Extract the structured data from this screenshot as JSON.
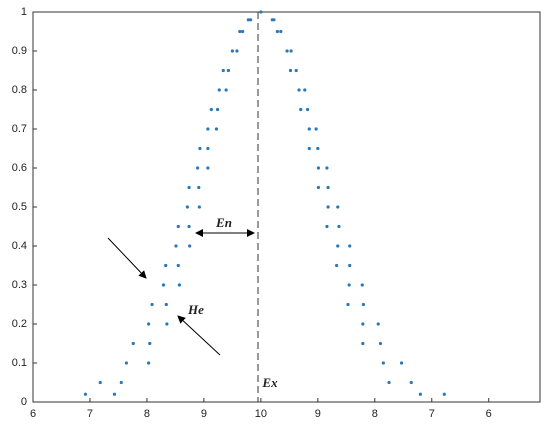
{
  "chart_data": {
    "type": "scatter",
    "color": "#2a78b8",
    "annotations": [
      "En",
      "He",
      "Ex"
    ],
    "x": [
      7.43,
      6.92,
      12.8,
      13.22,
      7.55,
      7.18,
      12.25,
      12.64,
      8.03,
      7.64,
      12.15,
      12.47,
      8.05,
      7.76,
      11.79,
      12.1,
      8.35,
      8.03,
      11.79,
      12.06,
      8.34,
      8.09,
      11.53,
      11.8,
      8.57,
      8.29,
      11.55,
      11.78,
      8.55,
      8.33,
      11.33,
      11.56,
      8.75,
      8.51,
      11.35,
      11.56,
      8.74,
      8.55,
      11.16,
      11.37,
      8.92,
      8.71,
      11.18,
      11.35,
      8.91,
      8.74,
      11.01,
      11.18,
      9.07,
      8.89,
      11.01,
      11.16,
      9.07,
      8.93,
      10.85,
      11.0,
      9.22,
      9.07,
      10.85,
      10.97,
      9.24,
      9.13,
      10.7,
      10.82,
      9.39,
      9.27,
      10.67,
      10.77,
      9.43,
      9.34,
      10.52,
      10.62,
      9.58,
      9.5,
      10.46,
      10.53,
      9.68,
      9.63,
      10.29,
      10.35,
      9.82,
      9.78,
      10.2,
      10.23,
      10
    ],
    "y": [
      0.02,
      0.02,
      0.02,
      0.02,
      0.05,
      0.05,
      0.05,
      0.05,
      0.1,
      0.1,
      0.1,
      0.1,
      0.15,
      0.15,
      0.15,
      0.15,
      0.2,
      0.2,
      0.2,
      0.2,
      0.25,
      0.25,
      0.25,
      0.25,
      0.3,
      0.3,
      0.3,
      0.3,
      0.35,
      0.35,
      0.35,
      0.35,
      0.4,
      0.4,
      0.4,
      0.4,
      0.45,
      0.45,
      0.45,
      0.45,
      0.5,
      0.5,
      0.5,
      0.5,
      0.55,
      0.55,
      0.55,
      0.55,
      0.6,
      0.6,
      0.6,
      0.6,
      0.65,
      0.65,
      0.65,
      0.65,
      0.7,
      0.7,
      0.7,
      0.7,
      0.75,
      0.75,
      0.75,
      0.75,
      0.8,
      0.8,
      0.8,
      0.8,
      0.85,
      0.85,
      0.85,
      0.85,
      0.9,
      0.9,
      0.9,
      0.9,
      0.95,
      0.95,
      0.95,
      0.95,
      0.98,
      0.98,
      0.98,
      0.98,
      1
    ],
    "xlim": [
      6,
      14.9
    ],
    "ylim": [
      0,
      1
    ],
    "xticks": [
      6,
      7,
      8,
      9,
      10,
      {
        "value": 11,
        "label": "9"
      },
      {
        "value": 12,
        "label": "8"
      },
      {
        "value": 13,
        "label": "7"
      },
      {
        "value": 14,
        "label": "6"
      }
    ],
    "yticks": [
      0,
      0.1,
      0.2,
      0.3,
      0.4,
      0.5,
      0.6,
      0.7,
      0.8,
      0.9,
      1
    ]
  }
}
